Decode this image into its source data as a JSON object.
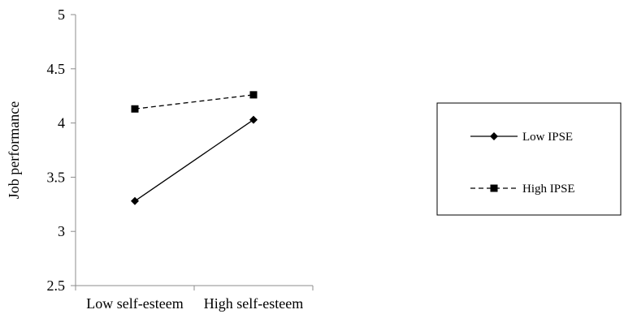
{
  "chart_data": {
    "type": "line",
    "title": "",
    "xlabel": "",
    "ylabel": "Job performance",
    "categories": [
      "Low self-esteem",
      "High self-esteem"
    ],
    "ylim": [
      2.5,
      5
    ],
    "yticks": [
      "2.5",
      "3",
      "3.5",
      "4",
      "4.5",
      "5"
    ],
    "grid": false,
    "legend_position": "right",
    "series": [
      {
        "name": "Low IPSE",
        "values": [
          3.28,
          4.03
        ],
        "line_style": "solid",
        "marker": "diamond",
        "color": "#000000"
      },
      {
        "name": "High IPSE",
        "values": [
          4.13,
          4.26
        ],
        "line_style": "dashed",
        "marker": "square",
        "color": "#000000"
      }
    ]
  }
}
